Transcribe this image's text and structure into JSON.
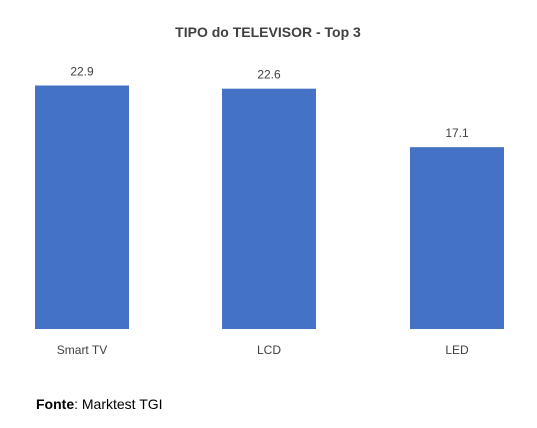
{
  "chart_data": {
    "type": "bar",
    "title": "TIPO do TELEVISOR - Top 3",
    "categories": [
      "Smart TV",
      "LCD",
      "LED"
    ],
    "values": [
      22.9,
      22.6,
      17.1
    ],
    "xlabel": "",
    "ylabel": "",
    "ylim": [
      0,
      24
    ],
    "grid": false,
    "bar_color": "#4472C4"
  },
  "source": {
    "label": "Fonte",
    "separator": ":",
    "text": "Marktest TGI"
  }
}
